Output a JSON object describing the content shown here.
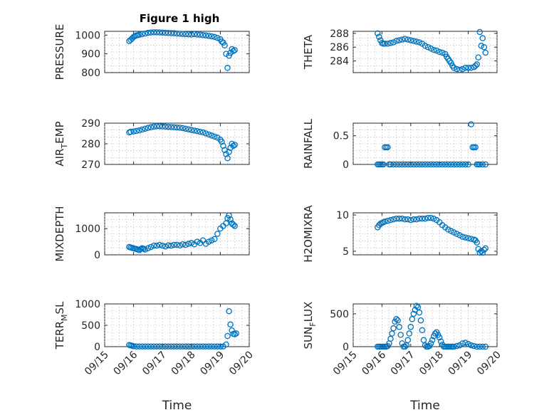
{
  "figure_title": "Figure 1 high",
  "colors": {
    "marker": "#0072BD",
    "axis": "#262626",
    "grid": "#b0b0b0"
  },
  "chart_data": [
    {
      "type": "scatter",
      "id": "pressure",
      "ylabel": "PRESSURE",
      "xlim": [
        0,
        5
      ],
      "ylim": [
        800,
        1020
      ],
      "yticks": [
        800,
        900,
        1000
      ],
      "xticks": [
        0,
        1,
        2,
        3,
        4,
        5
      ],
      "xtick_labels": [],
      "grid": true,
      "x": [
        0.85,
        0.9,
        0.95,
        1.0,
        1.05,
        1.1,
        1.15,
        1.2,
        1.3,
        1.4,
        1.5,
        1.6,
        1.7,
        1.8,
        1.9,
        2.0,
        2.1,
        2.2,
        2.3,
        2.4,
        2.5,
        2.6,
        2.7,
        2.8,
        2.9,
        3.0,
        3.1,
        3.2,
        3.3,
        3.4,
        3.5,
        3.6,
        3.7,
        3.8,
        3.9,
        4.0,
        4.05,
        4.1,
        4.15,
        4.2,
        4.25,
        4.3,
        4.35,
        4.4,
        4.45,
        4.5
      ],
      "y": [
        968,
        975,
        982,
        990,
        995,
        998,
        1000,
        1002,
        1005,
        1008,
        1012,
        1014,
        1015,
        1015,
        1014,
        1013,
        1012,
        1011,
        1010,
        1010,
        1008,
        1007,
        1006,
        1005,
        1004,
        1003,
        1005,
        1003,
        1002,
        1000,
        998,
        996,
        993,
        990,
        985,
        978,
        965,
        960,
        945,
        900,
        825,
        890,
        905,
        925,
        915,
        920
      ]
    },
    {
      "type": "scatter",
      "id": "theta",
      "ylabel": "THETA",
      "xlim": [
        0,
        5
      ],
      "ylim": [
        282.3,
        288.3
      ],
      "yticks": [
        284,
        286,
        288
      ],
      "xticks": [
        0,
        1,
        2,
        3,
        4,
        5
      ],
      "xtick_labels": [],
      "grid": true,
      "x": [
        0.85,
        0.9,
        0.95,
        1.0,
        1.05,
        1.1,
        1.2,
        1.3,
        1.4,
        1.5,
        1.6,
        1.7,
        1.8,
        1.9,
        2.0,
        2.1,
        2.2,
        2.3,
        2.4,
        2.5,
        2.6,
        2.7,
        2.8,
        2.9,
        3.0,
        3.1,
        3.2,
        3.25,
        3.3,
        3.35,
        3.4,
        3.45,
        3.5,
        3.6,
        3.7,
        3.8,
        3.9,
        4.0,
        4.1,
        4.2,
        4.25,
        4.3,
        4.35,
        4.4,
        4.45,
        4.5,
        4.55,
        4.6
      ],
      "y": [
        288,
        287.5,
        287,
        286.6,
        286.5,
        286.5,
        286.5,
        286.6,
        286.7,
        286.9,
        287,
        287.1,
        287.2,
        287.1,
        287,
        286.9,
        286.8,
        286.7,
        286.5,
        286.2,
        286,
        285.8,
        285.6,
        285.5,
        285.3,
        285.2,
        285,
        284.6,
        284.3,
        284,
        283.7,
        283.3,
        283,
        282.8,
        282.7,
        282.8,
        283,
        283,
        283,
        283.1,
        283.3,
        283.5,
        284.5,
        288.2,
        286.2,
        287.3,
        286,
        285.2
      ]
    },
    {
      "type": "scatter",
      "id": "air_temp",
      "ylabel_main": "AIR",
      "ylabel_sub": "T",
      "ylabel_rest": "EMP",
      "xlim": [
        0,
        5
      ],
      "ylim": [
        270,
        290
      ],
      "yticks": [
        270,
        280,
        290
      ],
      "xticks": [
        0,
        1,
        2,
        3,
        4,
        5
      ],
      "xtick_labels": [],
      "grid": true,
      "x": [
        0.85,
        0.9,
        1.0,
        1.1,
        1.2,
        1.3,
        1.4,
        1.5,
        1.6,
        1.7,
        1.8,
        1.9,
        2.0,
        2.1,
        2.2,
        2.3,
        2.4,
        2.5,
        2.6,
        2.7,
        2.8,
        2.9,
        3.0,
        3.1,
        3.2,
        3.3,
        3.4,
        3.5,
        3.6,
        3.7,
        3.8,
        3.9,
        4.0,
        4.05,
        4.1,
        4.15,
        4.2,
        4.25,
        4.3,
        4.35,
        4.4,
        4.45,
        4.5
      ],
      "y": [
        285.5,
        285.8,
        286,
        286.2,
        286.5,
        286.9,
        287.3,
        287.7,
        288,
        288.3,
        288.5,
        288.5,
        288.4,
        288.3,
        288.2,
        288.1,
        288,
        287.9,
        287.8,
        287.6,
        287.3,
        287,
        286.7,
        286.4,
        286.1,
        285.8,
        285.5,
        285,
        284.5,
        284,
        283.5,
        283,
        282,
        281,
        279,
        277,
        275,
        273,
        276,
        278,
        280,
        279,
        279.5
      ]
    },
    {
      "type": "scatter",
      "id": "rainfall",
      "ylabel": "RAINFALL",
      "xlim": [
        0,
        5
      ],
      "ylim": [
        0,
        0.72
      ],
      "yticks": [
        0,
        0.5
      ],
      "ytick_labels": [
        "0",
        "0.5"
      ],
      "xticks": [
        0,
        1,
        2,
        3,
        4,
        5
      ],
      "xtick_labels": [],
      "grid": true,
      "x": [
        0.85,
        0.9,
        0.95,
        1.0,
        1.05,
        1.1,
        1.15,
        1.2,
        1.25,
        1.3,
        1.4,
        1.5,
        1.6,
        1.7,
        1.8,
        1.9,
        2.0,
        2.1,
        2.2,
        2.3,
        2.4,
        2.5,
        2.6,
        2.7,
        2.8,
        2.9,
        3.0,
        3.1,
        3.2,
        3.3,
        3.4,
        3.5,
        3.6,
        3.7,
        3.8,
        3.9,
        4.0,
        4.1,
        4.15,
        4.2,
        4.25,
        4.3,
        4.35,
        4.4,
        4.5,
        4.6
      ],
      "y": [
        0,
        0,
        0,
        0,
        0,
        0.3,
        0.3,
        0.3,
        0,
        0,
        0,
        0,
        0,
        0,
        0,
        0,
        0,
        0,
        0,
        0,
        0,
        0,
        0,
        0,
        0,
        0,
        0,
        0,
        0,
        0,
        0,
        0,
        0,
        0,
        0,
        0,
        0,
        0.7,
        0.3,
        0.3,
        0.3,
        0,
        0,
        0,
        0,
        0
      ]
    },
    {
      "type": "scatter",
      "id": "mixdepth",
      "ylabel": "MIXDEPTH",
      "xlim": [
        0,
        5
      ],
      "ylim": [
        0,
        1600
      ],
      "yticks": [
        0,
        1000
      ],
      "xticks": [
        0,
        1,
        2,
        3,
        4,
        5
      ],
      "xtick_labels": [],
      "grid": true,
      "x": [
        0.85,
        0.9,
        0.95,
        1.0,
        1.05,
        1.1,
        1.15,
        1.2,
        1.25,
        1.3,
        1.35,
        1.4,
        1.5,
        1.6,
        1.7,
        1.8,
        1.9,
        2.0,
        2.1,
        2.2,
        2.3,
        2.4,
        2.5,
        2.6,
        2.7,
        2.8,
        2.9,
        3.0,
        3.1,
        3.2,
        3.3,
        3.4,
        3.5,
        3.6,
        3.7,
        3.8,
        3.9,
        4.0,
        4.1,
        4.2,
        4.25,
        4.3,
        4.35,
        4.4,
        4.45,
        4.5
      ],
      "y": [
        300,
        280,
        260,
        250,
        230,
        220,
        200,
        180,
        220,
        250,
        230,
        200,
        250,
        300,
        350,
        350,
        380,
        350,
        320,
        360,
        350,
        380,
        380,
        360,
        400,
        380,
        420,
        450,
        400,
        500,
        450,
        550,
        420,
        500,
        550,
        600,
        800,
        1000,
        1100,
        1200,
        1400,
        1500,
        1350,
        1200,
        1150,
        1100
      ]
    },
    {
      "type": "scatter",
      "id": "h2omixra",
      "ylabel": "H2OMIXRA",
      "xlim": [
        0,
        5
      ],
      "ylim": [
        4.5,
        10.3
      ],
      "yticks": [
        5,
        10
      ],
      "xticks": [
        0,
        1,
        2,
        3,
        4,
        5
      ],
      "xtick_labels": [],
      "grid": true,
      "x": [
        0.85,
        0.9,
        0.95,
        1.0,
        1.05,
        1.1,
        1.2,
        1.3,
        1.4,
        1.5,
        1.6,
        1.7,
        1.8,
        1.9,
        2.0,
        2.1,
        2.2,
        2.3,
        2.4,
        2.5,
        2.6,
        2.7,
        2.8,
        2.9,
        3.0,
        3.1,
        3.2,
        3.3,
        3.4,
        3.5,
        3.6,
        3.7,
        3.8,
        3.9,
        4.0,
        4.1,
        4.2,
        4.25,
        4.3,
        4.35,
        4.4,
        4.45,
        4.5,
        4.55,
        4.6
      ],
      "y": [
        8.3,
        8.6,
        8.8,
        8.9,
        9,
        9.1,
        9.2,
        9.3,
        9.4,
        9.5,
        9.5,
        9.5,
        9.4,
        9.4,
        9.3,
        9.4,
        9.4,
        9.5,
        9.5,
        9.5,
        9.6,
        9.6,
        9.5,
        9.3,
        9,
        8.6,
        8.3,
        8,
        7.8,
        7.6,
        7.4,
        7.2,
        7,
        6.9,
        6.8,
        6.7,
        6.6,
        6.5,
        6.2,
        5.3,
        4.8,
        5,
        4.8,
        5.2,
        5.4
      ]
    },
    {
      "type": "scatter",
      "id": "terr_msl",
      "ylabel_main": "TERR",
      "ylabel_sub": "M",
      "ylabel_rest": "SL",
      "xlim": [
        0,
        5
      ],
      "ylim": [
        0,
        1000
      ],
      "yticks": [
        0,
        500,
        1000
      ],
      "xticks": [
        0,
        1,
        2,
        3,
        4,
        5
      ],
      "xtick_labels": [
        "09/15",
        "09/16",
        "09/17",
        "09/18",
        "09/19",
        "09/20"
      ],
      "xlabel": "Time",
      "grid": true,
      "x": [
        0.85,
        0.9,
        0.95,
        1.0,
        1.1,
        1.2,
        1.3,
        1.4,
        1.5,
        1.6,
        1.7,
        1.8,
        1.9,
        2.0,
        2.1,
        2.2,
        2.3,
        2.4,
        2.5,
        2.6,
        2.7,
        2.8,
        2.9,
        3.0,
        3.1,
        3.2,
        3.3,
        3.4,
        3.5,
        3.6,
        3.7,
        3.8,
        3.9,
        4.0,
        4.1,
        4.2,
        4.25,
        4.3,
        4.35,
        4.4,
        4.45,
        4.5,
        4.55
      ],
      "y": [
        40,
        30,
        20,
        10,
        5,
        5,
        5,
        5,
        5,
        5,
        5,
        5,
        5,
        5,
        5,
        5,
        5,
        5,
        5,
        5,
        5,
        5,
        5,
        5,
        5,
        5,
        5,
        5,
        5,
        5,
        5,
        5,
        5,
        5,
        5,
        50,
        250,
        830,
        520,
        380,
        300,
        290,
        310
      ]
    },
    {
      "type": "scatter",
      "id": "sun_flux",
      "ylabel_main": "SUN",
      "ylabel_sub": "F",
      "ylabel_rest": "LUX",
      "xlim": [
        0,
        5
      ],
      "ylim": [
        0,
        650
      ],
      "yticks": [
        0,
        500
      ],
      "xticks": [
        0,
        1,
        2,
        3,
        4,
        5
      ],
      "xtick_labels": [
        "09/15",
        "09/16",
        "09/17",
        "09/18",
        "09/19",
        "09/20"
      ],
      "xlabel": "Time",
      "grid": true,
      "x": [
        0.85,
        0.9,
        0.95,
        1.0,
        1.05,
        1.1,
        1.15,
        1.2,
        1.25,
        1.3,
        1.35,
        1.4,
        1.45,
        1.5,
        1.55,
        1.6,
        1.65,
        1.7,
        1.75,
        1.8,
        1.85,
        1.9,
        1.95,
        2.0,
        2.05,
        2.1,
        2.15,
        2.2,
        2.25,
        2.3,
        2.35,
        2.4,
        2.45,
        2.5,
        2.55,
        2.6,
        2.65,
        2.7,
        2.75,
        2.8,
        2.85,
        2.9,
        2.95,
        3.0,
        3.05,
        3.1,
        3.15,
        3.2,
        3.25,
        3.3,
        3.35,
        3.4,
        3.45,
        3.5,
        3.6,
        3.7,
        3.8,
        3.9,
        4.0,
        4.1,
        4.2,
        4.3,
        4.4,
        4.5,
        4.6
      ],
      "y": [
        0,
        0,
        0,
        0,
        0,
        0,
        0,
        10,
        50,
        120,
        200,
        280,
        380,
        420,
        400,
        300,
        180,
        50,
        0,
        0,
        20,
        100,
        200,
        300,
        420,
        500,
        560,
        620,
        600,
        520,
        400,
        250,
        100,
        20,
        0,
        0,
        10,
        50,
        100,
        160,
        200,
        220,
        180,
        140,
        80,
        30,
        0,
        0,
        0,
        0,
        0,
        0,
        0,
        0,
        10,
        20,
        50,
        60,
        40,
        20,
        10,
        0,
        0,
        0,
        0
      ]
    }
  ]
}
